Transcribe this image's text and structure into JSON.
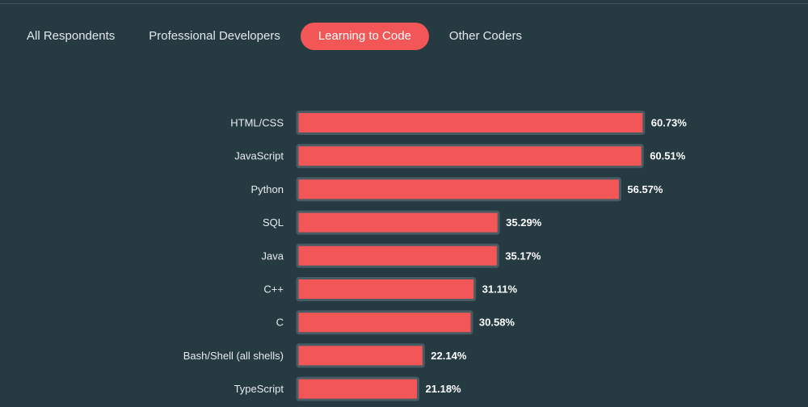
{
  "tabs": [
    {
      "label": "All Respondents",
      "active": false
    },
    {
      "label": "Professional Developers",
      "active": false
    },
    {
      "label": "Learning to Code",
      "active": true
    },
    {
      "label": "Other Coders",
      "active": false
    }
  ],
  "colors": {
    "background": "#263a42",
    "bar": "#f25656",
    "bar_border": "#4a5c63",
    "active_tab": "#f25656"
  },
  "chart_data": {
    "type": "bar",
    "orientation": "horizontal",
    "categories": [
      "HTML/CSS",
      "JavaScript",
      "Python",
      "SQL",
      "Java",
      "C++",
      "C",
      "Bash/Shell (all shells)",
      "TypeScript"
    ],
    "values": [
      60.73,
      60.51,
      56.57,
      35.29,
      35.17,
      31.11,
      30.58,
      22.14,
      21.18
    ],
    "value_labels": [
      "60.73%",
      "60.51%",
      "56.57%",
      "35.29%",
      "35.17%",
      "31.11%",
      "30.58%",
      "22.14%",
      "21.18%"
    ],
    "unit": "%",
    "xlim": [
      0,
      100
    ],
    "grid": false,
    "legend": "none"
  }
}
